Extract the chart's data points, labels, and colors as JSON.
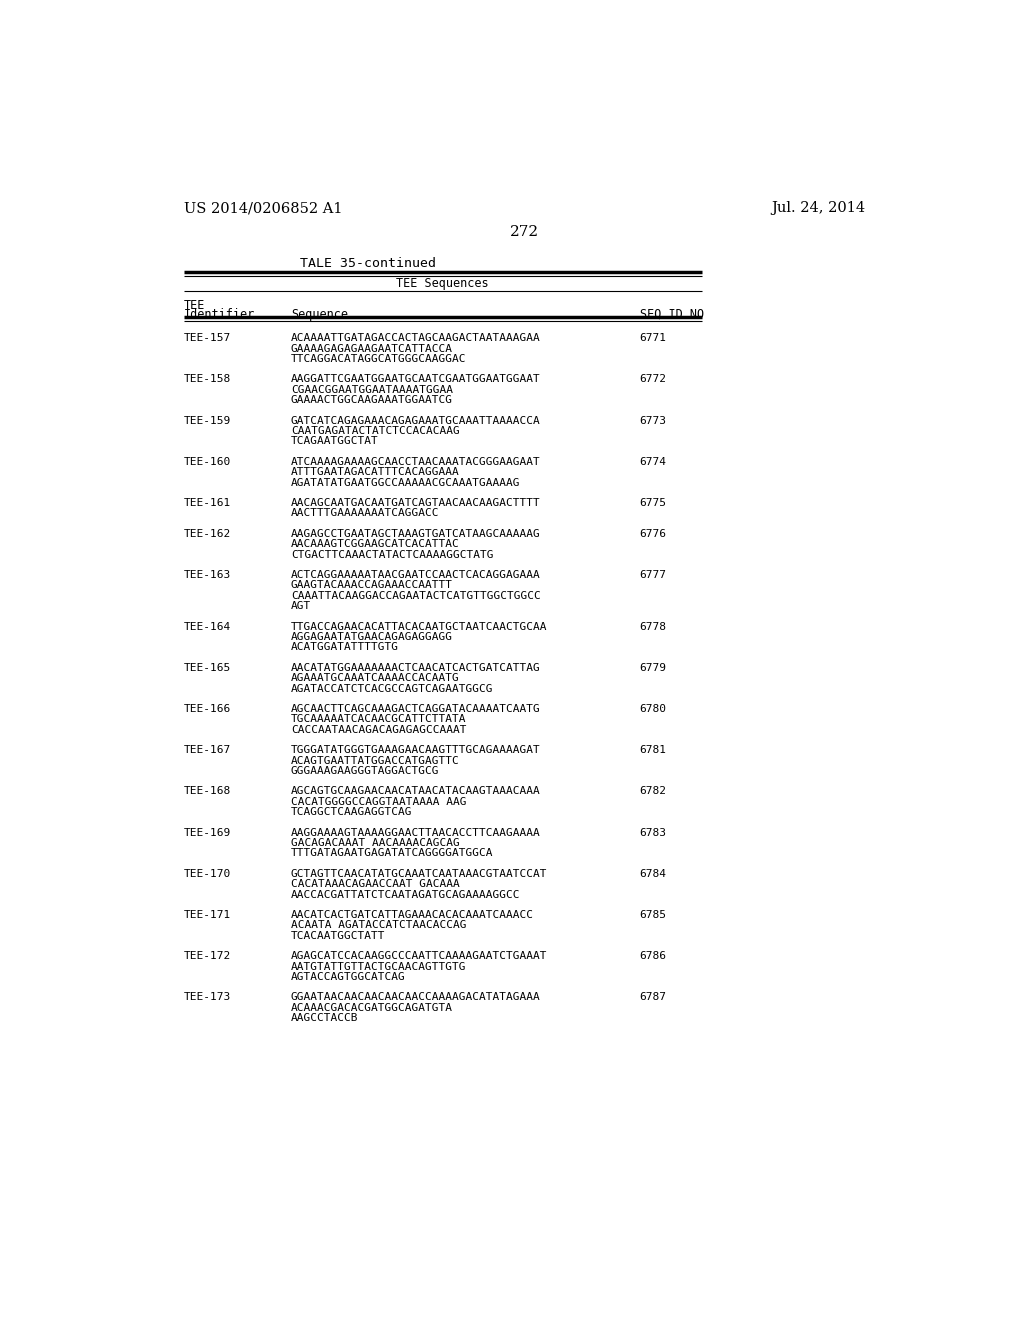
{
  "patent_left": "US 2014/0206852 A1",
  "patent_right": "Jul. 24, 2014",
  "page_number": "272",
  "table_title": "TALE 35-continued",
  "col_header_group": "TEE Sequences",
  "entries": [
    {
      "id": "TEE-157",
      "seq": "ACAAAATTGATAGACCACTAGCAAGACTAATAAAGAA\nGAAAAGAGAGAAGAATCATTACCA\nTTCAGGACATAGGCATGGGCAAGGAC",
      "seqid": "6771"
    },
    {
      "id": "TEE-158",
      "seq": "AAGGATTCGAATGGAATGCAATCGAATGGAATGGAAT\nCGAACGGAATGGAATAAAATGGAA\nGAAAACTGGCAAGAAATGGAATCG",
      "seqid": "6772"
    },
    {
      "id": "TEE-159",
      "seq": "GATCATCAGAGAAACAGAGAAATGCAAATTAAAACCA\nCAATGAGATACTATCTCCACACAAG\nTCAGAATGGCTAT",
      "seqid": "6773"
    },
    {
      "id": "TEE-160",
      "seq": "ATCAAAAGAAAAGCAACCTAACAAATACGGGAAGAAT\nATTTGAATAGACATTTCACAGGAAA\nAGATATATGAATGGCCAAAAACGCAAATGAAAAG",
      "seqid": "6774"
    },
    {
      "id": "TEE-161",
      "seq": "AACAGCAATGACAATGATCAGTAACAACAAGACTTTT\nAACTTTGAAAAAAATCAGGACC",
      "seqid": "6775"
    },
    {
      "id": "TEE-162",
      "seq": "AAGAGCCTGAATAGCTAAAGTGATCATAAGCAAAAAG\nAACAAAGTCGGAAGCATCACATTAC\nCTGACTTCAAACTATACTCAAAAGGCTATG",
      "seqid": "6776"
    },
    {
      "id": "TEE-163",
      "seq": "ACTCAGGAAAAATAACGAATCCAACTCACAGGAGAAA\nGAAGTACAAACCAGAAACCAATTT\nCAAATTACAAGGACCAGAATACTCATGTTGGCTGGCC\nAGT",
      "seqid": "6777"
    },
    {
      "id": "TEE-164",
      "seq": "TTGACCAGAACACATTACACAATGCTAATCAACTGCAA\nAGGAGAATATGAACAGAGAGGAGG\nACATGGATATTTTGTG",
      "seqid": "6778"
    },
    {
      "id": "TEE-165",
      "seq": "AACATATGGAAAAAAACTCAACATCACTGATCATTAG\nAGAAATGCAAATCAAAACCACAATG\nAGATACCATCTCACGCCAGTCAGAATGGCG",
      "seqid": "6779"
    },
    {
      "id": "TEE-166",
      "seq": "AGCAACTTCAGCAAAGACTCAGGATACAAAATCAATG\nTGCAAAAATCACAACGCATTCTTATA\nCACCAATAACAGACAGAGAGCCAAAT",
      "seqid": "6780"
    },
    {
      "id": "TEE-167",
      "seq": "TGGGATATGGGTGAAAGAACAAGTTTGCAGAAAAGAT\nACAGTGAATTATGGACCATGAGTTC\nGGGAAAGAAGGGTAGGACTGCG",
      "seqid": "6781"
    },
    {
      "id": "TEE-168",
      "seq": "AGCAGTGCAAGAACAACATAACATACAAGTAAACAAA\nCACATGGGGCCAGGTAATAAAA AAG\nTCAGGCTCAAGAGGTCAG",
      "seqid": "6782"
    },
    {
      "id": "TEE-169",
      "seq": "AAGGAAAAGTAAAAGGAACTTAACACCTTCAAGAAAA\nGACAGACAAAT AACAAAACAGCAG\nTTTGATAGAATGAGATATCAGGGGATGGCA",
      "seqid": "6783"
    },
    {
      "id": "TEE-170",
      "seq": "GCTAGTTCAACATATGCAAATCAATAAACGTAATCCAT\nCACATAAACAGAACCAAT GACAAA\nAACCACGATTATCTCAATAGATGCAGAAAAGGCC",
      "seqid": "6784"
    },
    {
      "id": "TEE-171",
      "seq": "AACATCACTGATCATTAGAAACACACAAATCAAACC\nACAATA AGATACCATCTAACACCAG\nTCACAATGGCTATT",
      "seqid": "6785"
    },
    {
      "id": "TEE-172",
      "seq": "AGAGCATCCACAAGGCCCAATTCAAAAGAATCTGAAAT\nAATGTATTGTTACTGCAACAGTTGTG\nAGTACCAGTGGCATCAG",
      "seqid": "6786"
    },
    {
      "id": "TEE-173",
      "seq": "GGAATAACAACAACAACAACCAAAAGACATATAGAAA\nACAAACGACACGATGGCAGATGTA\nAAGCCTACCB",
      "seqid": "6787"
    }
  ]
}
